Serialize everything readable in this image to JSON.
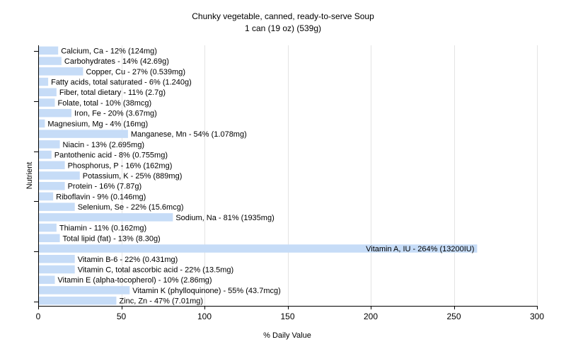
{
  "chart_data": {
    "type": "bar",
    "orientation": "horizontal",
    "title": "Chunky vegetable, canned, ready-to-serve Soup",
    "subtitle": "1 can (19 oz) (539g)",
    "xlabel": "% Daily Value",
    "ylabel": "Nutrient",
    "xlim": [
      0,
      300
    ],
    "xticks": [
      0,
      50,
      100,
      150,
      200,
      250,
      300
    ],
    "grid": true,
    "bar_color": "#c6dcf7",
    "categories": [
      "Calcium, Ca",
      "Carbohydrates",
      "Copper, Cu",
      "Fatty acids, total saturated",
      "Fiber, total dietary",
      "Folate, total",
      "Iron, Fe",
      "Magnesium, Mg",
      "Manganese, Mn",
      "Niacin",
      "Pantothenic acid",
      "Phosphorus, P",
      "Potassium, K",
      "Protein",
      "Riboflavin",
      "Selenium, Se",
      "Sodium, Na",
      "Thiamin",
      "Total lipid (fat)",
      "Vitamin A, IU",
      "Vitamin B-6",
      "Vitamin C, total ascorbic acid",
      "Vitamin E (alpha-tocopherol)",
      "Vitamin K (phylloquinone)",
      "Zinc, Zn"
    ],
    "values": [
      12,
      14,
      27,
      6,
      11,
      10,
      20,
      4,
      54,
      13,
      8,
      16,
      25,
      16,
      9,
      22,
      81,
      11,
      13,
      264,
      22,
      22,
      10,
      55,
      47
    ],
    "labels": [
      "Calcium, Ca - 12% (124mg)",
      "Carbohydrates - 14% (42.69g)",
      "Copper, Cu - 27% (0.539mg)",
      "Fatty acids, total saturated - 6% (1.240g)",
      "Fiber, total dietary - 11% (2.7g)",
      "Folate, total - 10% (38mcg)",
      "Iron, Fe - 20% (3.67mg)",
      "Magnesium, Mg - 4% (16mg)",
      "Manganese, Mn - 54% (1.078mg)",
      "Niacin - 13% (2.695mg)",
      "Pantothenic acid - 8% (0.755mg)",
      "Phosphorus, P - 16% (162mg)",
      "Potassium, K - 25% (889mg)",
      "Protein - 16% (7.87g)",
      "Riboflavin - 9% (0.146mg)",
      "Selenium, Se - 22% (15.6mcg)",
      "Sodium, Na - 81% (1935mg)",
      "Thiamin - 11% (0.162mg)",
      "Total lipid (fat) - 13% (8.30g)",
      "Vitamin A, IU - 264% (13200IU)",
      "Vitamin B-6 - 22% (0.431mg)",
      "Vitamin C, total ascorbic acid - 22% (13.5mg)",
      "Vitamin E (alpha-tocopherol) - 10% (2.86mg)",
      "Vitamin K (phylloquinone) - 55% (43.7mcg)",
      "Zinc, Zn - 47% (7.01mg)"
    ]
  }
}
